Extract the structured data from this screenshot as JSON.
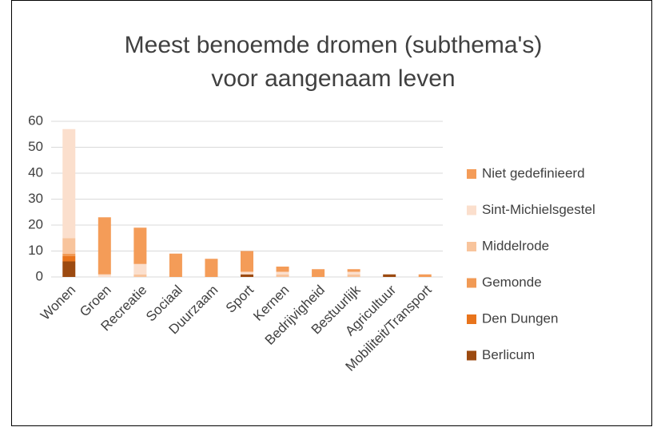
{
  "chart_data": {
    "type": "stacked_bar",
    "title": [
      "Meest benoemde dromen (subthema's)",
      "voor aangenaam leven"
    ],
    "categories": [
      "Wonen",
      "Groen",
      "Recreatie",
      "Sociaal",
      "Duurzaam",
      "Sport",
      "Kernen",
      "Bedrijvigheid",
      "Bestuurlijk",
      "Agricultuur",
      "Mobiliteit/Transport"
    ],
    "series": [
      {
        "name": "Berlicum",
        "color": "#9c4a10",
        "values": [
          6,
          0,
          0,
          0,
          0,
          1,
          0,
          0,
          0,
          1,
          0
        ]
      },
      {
        "name": "Den Dungen",
        "color": "#e8741c",
        "values": [
          2,
          0,
          0,
          0,
          0,
          0,
          0,
          0,
          0,
          0,
          0
        ]
      },
      {
        "name": "Gemonde",
        "color": "#f19a55",
        "values": [
          1,
          0,
          0,
          0,
          0,
          0,
          0,
          0,
          0,
          0,
          0
        ]
      },
      {
        "name": "Middelrode",
        "color": "#f8c49c",
        "values": [
          6,
          0,
          1,
          0,
          0,
          0,
          1,
          0,
          1,
          0,
          0
        ]
      },
      {
        "name": "Sint-Michielsgestel",
        "color": "#fbdfcd",
        "values": [
          42,
          1,
          4,
          0,
          0,
          1,
          1,
          0,
          1,
          0,
          0
        ]
      },
      {
        "name": "Niet gedefinieerd",
        "color": "#f49c58",
        "values": [
          0,
          22,
          14,
          9,
          7,
          8,
          2,
          3,
          1,
          0,
          1
        ]
      }
    ],
    "ylim": [
      0,
      60
    ],
    "yticks": [
      0,
      10,
      20,
      30,
      40,
      50,
      60
    ],
    "grid": true,
    "legend": "right"
  }
}
